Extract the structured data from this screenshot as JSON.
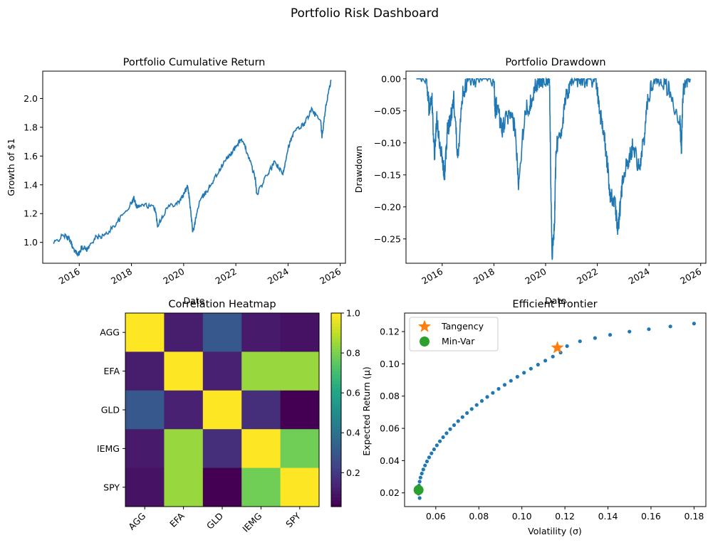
{
  "figure": {
    "title": "Portfolio Risk Dashboard"
  },
  "chart_data": [
    {
      "type": "line",
      "title": "Portfolio Cumulative Return",
      "xlabel": "Date",
      "ylabel": "Growth of $1",
      "xlim": [
        2014.6,
        2026.2
      ],
      "ylim": [
        0.855,
        2.19
      ],
      "x_ticks": [
        2016,
        2018,
        2020,
        2022,
        2024,
        2026
      ],
      "x_tick_labels": [
        "2016",
        "2018",
        "2020",
        "2022",
        "2024",
        "2026"
      ],
      "y_ticks": [
        1.0,
        1.2,
        1.4,
        1.6,
        1.8,
        2.0
      ],
      "y_tick_labels": [
        "1.0",
        "1.2",
        "1.4",
        "1.6",
        "1.8",
        "2.0"
      ],
      "color": "#1f77b4",
      "series": [
        {
          "x": [
            2015.0,
            2015.4,
            2015.65,
            2015.8,
            2016.0,
            2016.1,
            2016.3,
            2016.6,
            2017.0,
            2017.5,
            2018.0,
            2018.1,
            2018.2,
            2018.5,
            2018.9,
            2019.0,
            2019.4,
            2019.8,
            2020.0,
            2020.15,
            2020.22,
            2020.35,
            2020.6,
            2020.9,
            2021.2,
            2021.6,
            2021.95,
            2022.2,
            2022.45,
            2022.75,
            2022.8,
            2023.2,
            2023.5,
            2023.8,
            2024.0,
            2024.25,
            2024.6,
            2024.9,
            2025.25,
            2025.3,
            2025.45,
            2025.65
          ],
          "y": [
            0.99,
            1.05,
            1.02,
            0.94,
            0.92,
            0.97,
            0.95,
            1.03,
            1.05,
            1.15,
            1.27,
            1.31,
            1.25,
            1.26,
            1.24,
            1.12,
            1.25,
            1.28,
            1.33,
            1.4,
            1.3,
            1.07,
            1.28,
            1.36,
            1.45,
            1.57,
            1.65,
            1.72,
            1.62,
            1.44,
            1.33,
            1.47,
            1.56,
            1.47,
            1.66,
            1.77,
            1.82,
            1.92,
            1.84,
            1.73,
            1.95,
            2.13
          ]
        }
      ]
    },
    {
      "type": "line",
      "title": "Portfolio Drawdown",
      "xlabel": "Date",
      "ylabel": "Drawdown",
      "xlim": [
        2014.6,
        2026.2
      ],
      "ylim": [
        -0.288,
        0.012
      ],
      "x_ticks": [
        2016,
        2018,
        2020,
        2022,
        2024,
        2026
      ],
      "x_tick_labels": [
        "2016",
        "2018",
        "2020",
        "2022",
        "2024",
        "2026"
      ],
      "y_ticks": [
        0.0,
        -0.05,
        -0.1,
        -0.15,
        -0.2,
        -0.25
      ],
      "y_tick_labels": [
        "0.00",
        "−0.05",
        "−0.10",
        "−0.15",
        "−0.20",
        "−0.25"
      ],
      "color": "#1f77b4",
      "series": [
        {
          "x": [
            2015.0,
            2015.4,
            2015.5,
            2015.6,
            2015.7,
            2015.8,
            2016.0,
            2016.1,
            2016.2,
            2016.3,
            2016.45,
            2016.6,
            2016.8,
            2017.0,
            2017.5,
            2018.0,
            2018.05,
            2018.1,
            2018.3,
            2018.5,
            2018.8,
            2018.95,
            2019.2,
            2019.4,
            2019.6,
            2019.8,
            2020.0,
            2020.15,
            2020.2,
            2020.25,
            2020.35,
            2020.4,
            2020.6,
            2020.8,
            2021.0,
            2021.3,
            2021.6,
            2021.95,
            2022.1,
            2022.3,
            2022.4,
            2022.5,
            2022.7,
            2022.8,
            2022.9,
            2023.0,
            2023.2,
            2023.4,
            2023.6,
            2023.8,
            2023.95,
            2024.2,
            2024.5,
            2024.8,
            2025.2,
            2025.25,
            2025.3,
            2025.4,
            2025.6
          ],
          "y": [
            0.0,
            0.0,
            -0.05,
            -0.03,
            -0.12,
            -0.06,
            -0.13,
            -0.15,
            -0.08,
            -0.07,
            -0.03,
            -0.12,
            -0.02,
            0.0,
            0.0,
            0.0,
            -0.05,
            -0.04,
            -0.08,
            -0.06,
            -0.07,
            -0.16,
            -0.05,
            -0.04,
            -0.01,
            0.0,
            0.0,
            0.0,
            -0.15,
            -0.28,
            -0.22,
            -0.11,
            -0.08,
            -0.03,
            0.0,
            0.0,
            0.0,
            0.0,
            -0.05,
            -0.1,
            -0.14,
            -0.18,
            -0.2,
            -0.24,
            -0.19,
            -0.15,
            -0.13,
            -0.1,
            -0.14,
            -0.1,
            -0.03,
            0.0,
            0.0,
            -0.02,
            -0.07,
            -0.12,
            -0.03,
            0.0,
            0.0
          ]
        }
      ]
    },
    {
      "type": "heatmap",
      "title": "Correlation Heatmap",
      "categories": [
        "AGG",
        "EFA",
        "GLD",
        "IEMG",
        "SPY"
      ],
      "values": [
        [
          1.0,
          0.11,
          0.3,
          0.1,
          0.08
        ],
        [
          0.11,
          1.0,
          0.12,
          0.85,
          0.85
        ],
        [
          0.3,
          0.12,
          1.0,
          0.16,
          0.03
        ],
        [
          0.1,
          0.85,
          0.16,
          1.0,
          0.79
        ],
        [
          0.08,
          0.85,
          0.03,
          0.79,
          1.0
        ]
      ],
      "colorbar": {
        "range": [
          0.03,
          1.0
        ],
        "ticks": [
          0.2,
          0.4,
          0.6,
          0.8,
          1.0
        ],
        "tick_labels": [
          "0.2",
          "0.4",
          "0.6",
          "0.8",
          "1.0"
        ]
      },
      "colormap": "viridis"
    },
    {
      "type": "scatter",
      "title": "Efficient Frontier",
      "xlabel": "Volatility (σ)",
      "ylabel": "Expected Return (μ)",
      "xlim": [
        0.0455,
        0.1855
      ],
      "ylim": [
        0.0115,
        0.1315
      ],
      "x_ticks": [
        0.06,
        0.08,
        0.1,
        0.12,
        0.14,
        0.16,
        0.18
      ],
      "x_tick_labels": [
        "0.06",
        "0.08",
        "0.10",
        "0.12",
        "0.14",
        "0.16",
        "0.18"
      ],
      "y_ticks": [
        0.02,
        0.04,
        0.06,
        0.08,
        0.1,
        0.12
      ],
      "y_tick_labels": [
        "0.02",
        "0.04",
        "0.06",
        "0.08",
        "0.10",
        "0.12"
      ],
      "legend_position": "top-left",
      "frontier": {
        "color": "#1f77b4",
        "points": [
          [
            0.0525,
            0.0168
          ],
          [
            0.052,
            0.0195
          ],
          [
            0.052,
            0.022
          ],
          [
            0.0522,
            0.0245
          ],
          [
            0.0525,
            0.027
          ],
          [
            0.0529,
            0.0295
          ],
          [
            0.0535,
            0.032
          ],
          [
            0.0542,
            0.0345
          ],
          [
            0.055,
            0.037
          ],
          [
            0.0559,
            0.0395
          ],
          [
            0.0569,
            0.042
          ],
          [
            0.058,
            0.0445
          ],
          [
            0.0592,
            0.047
          ],
          [
            0.0605,
            0.0495
          ],
          [
            0.0619,
            0.052
          ],
          [
            0.0634,
            0.0545
          ],
          [
            0.065,
            0.057
          ],
          [
            0.0667,
            0.0595
          ],
          [
            0.0685,
            0.062
          ],
          [
            0.0704,
            0.0645
          ],
          [
            0.0724,
            0.067
          ],
          [
            0.0745,
            0.0695
          ],
          [
            0.0767,
            0.072
          ],
          [
            0.079,
            0.0745
          ],
          [
            0.0814,
            0.077
          ],
          [
            0.0839,
            0.0795
          ],
          [
            0.0865,
            0.082
          ],
          [
            0.0892,
            0.0845
          ],
          [
            0.092,
            0.087
          ],
          [
            0.0949,
            0.0895
          ],
          [
            0.0979,
            0.092
          ],
          [
            0.101,
            0.0945
          ],
          [
            0.1042,
            0.097
          ],
          [
            0.1075,
            0.0995
          ],
          [
            0.1109,
            0.102
          ],
          [
            0.1144,
            0.1045
          ],
          [
            0.118,
            0.107
          ],
          [
            0.121,
            0.111
          ],
          [
            0.127,
            0.114
          ],
          [
            0.134,
            0.116
          ],
          [
            0.141,
            0.118
          ],
          [
            0.15,
            0.12
          ],
          [
            0.159,
            0.1215
          ],
          [
            0.169,
            0.1232
          ],
          [
            0.18,
            0.125
          ]
        ]
      },
      "special_points": [
        {
          "name": "Tangency",
          "x": 0.1165,
          "y": 0.11,
          "color": "#ff7f0e",
          "marker": "star"
        },
        {
          "name": "Min-Var",
          "x": 0.052,
          "y": 0.0218,
          "color": "#2ca02c",
          "marker": "circle"
        }
      ]
    }
  ]
}
